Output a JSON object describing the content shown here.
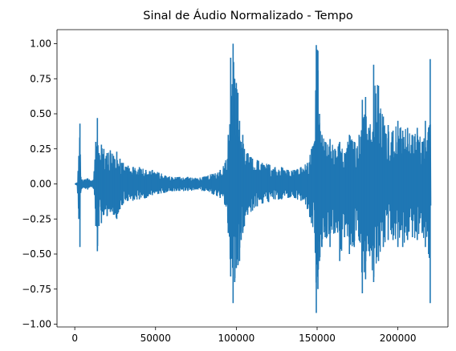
{
  "chart_data": {
    "type": "line",
    "title": "Sinal de Áudio Normalizado - Tempo",
    "xlabel": "",
    "ylabel": "",
    "xlim": [
      -11000,
      231000
    ],
    "ylim": [
      -1.02,
      1.1
    ],
    "x_ticks": [
      0,
      50000,
      100000,
      150000,
      200000
    ],
    "x_tick_labels": [
      "0",
      "50000",
      "100000",
      "150000",
      "200000"
    ],
    "y_ticks": [
      1.0,
      0.75,
      0.5,
      0.25,
      0.0,
      -0.25,
      -0.5,
      -0.75,
      -1.0
    ],
    "y_tick_labels": [
      "1.00",
      "0.75",
      "0.50",
      "0.25",
      "0.00",
      "−0.25",
      "−0.50",
      "−0.75",
      "−1.00"
    ],
    "grid": false,
    "legend": "none",
    "series": [
      {
        "color": "#1f77b4",
        "envelope": {
          "x": [
            0,
            1500,
            2500,
            3200,
            3800,
            4500,
            6000,
            8000,
            10000,
            11500,
            13000,
            14000,
            15000,
            16500,
            18000,
            20000,
            22000,
            24000,
            26000,
            28000,
            30000,
            33000,
            36000,
            40000,
            44000,
            48000,
            52000,
            56000,
            60000,
            65000,
            70000,
            75000,
            80000,
            85000,
            90000,
            93000,
            95000,
            96500,
            98000,
            99000,
            100000,
            101000,
            102000,
            103000,
            104000,
            105000,
            107000,
            110000,
            113000,
            116000,
            120000,
            124000,
            128000,
            132000,
            136000,
            140000,
            144000,
            146500,
            148500,
            149500,
            150500,
            151500,
            153000,
            155000,
            158000,
            161000,
            164000,
            167000,
            170000,
            173000,
            176000,
            178000,
            180000,
            182000,
            185000,
            188000,
            191000,
            194000,
            197000,
            200000,
            203000,
            206000,
            209000,
            212000,
            215000,
            217000,
            219000,
            220000,
            220500
          ],
          "upper": [
            0.0,
            0.01,
            0.2,
            0.43,
            0.05,
            0.03,
            0.03,
            0.04,
            0.02,
            0.03,
            0.3,
            0.47,
            0.22,
            0.28,
            0.25,
            0.22,
            0.24,
            0.2,
            0.23,
            0.18,
            0.15,
            0.13,
            0.12,
            0.12,
            0.1,
            0.1,
            0.08,
            0.06,
            0.05,
            0.05,
            0.05,
            0.04,
            0.05,
            0.07,
            0.1,
            0.15,
            0.35,
            0.9,
            1.0,
            0.75,
            0.72,
            0.65,
            0.45,
            0.3,
            0.35,
            0.25,
            0.22,
            0.18,
            0.17,
            0.15,
            0.14,
            0.12,
            0.12,
            0.1,
            0.1,
            0.12,
            0.15,
            0.25,
            0.3,
            0.99,
            0.95,
            0.5,
            0.35,
            0.3,
            0.32,
            0.25,
            0.3,
            0.22,
            0.35,
            0.3,
            0.35,
            0.6,
            0.62,
            0.4,
            0.85,
            0.7,
            0.48,
            0.42,
            0.38,
            0.45,
            0.38,
            0.4,
            0.35,
            0.4,
            0.3,
            0.45,
            0.4,
            0.89,
            0.0
          ],
          "lower": [
            0.0,
            -0.01,
            -0.25,
            -0.45,
            -0.05,
            -0.03,
            -0.03,
            -0.04,
            -0.02,
            -0.03,
            -0.3,
            -0.48,
            -0.3,
            -0.28,
            -0.22,
            -0.23,
            -0.2,
            -0.22,
            -0.25,
            -0.18,
            -0.14,
            -0.12,
            -0.12,
            -0.11,
            -0.1,
            -0.08,
            -0.07,
            -0.06,
            -0.05,
            -0.05,
            -0.05,
            -0.04,
            -0.05,
            -0.07,
            -0.1,
            -0.15,
            -0.35,
            -0.66,
            -0.85,
            -0.7,
            -0.6,
            -0.58,
            -0.55,
            -0.4,
            -0.35,
            -0.3,
            -0.22,
            -0.19,
            -0.16,
            -0.14,
            -0.13,
            -0.11,
            -0.11,
            -0.1,
            -0.1,
            -0.12,
            -0.18,
            -0.28,
            -0.35,
            -0.92,
            -0.75,
            -0.55,
            -0.45,
            -0.38,
            -0.45,
            -0.35,
            -0.55,
            -0.38,
            -0.5,
            -0.45,
            -0.4,
            -0.78,
            -0.68,
            -0.48,
            -0.7,
            -0.55,
            -0.45,
            -0.4,
            -0.4,
            -0.45,
            -0.45,
            -0.4,
            -0.38,
            -0.4,
            -0.35,
            -0.45,
            -0.5,
            -0.85,
            0.0
          ]
        }
      }
    ]
  }
}
